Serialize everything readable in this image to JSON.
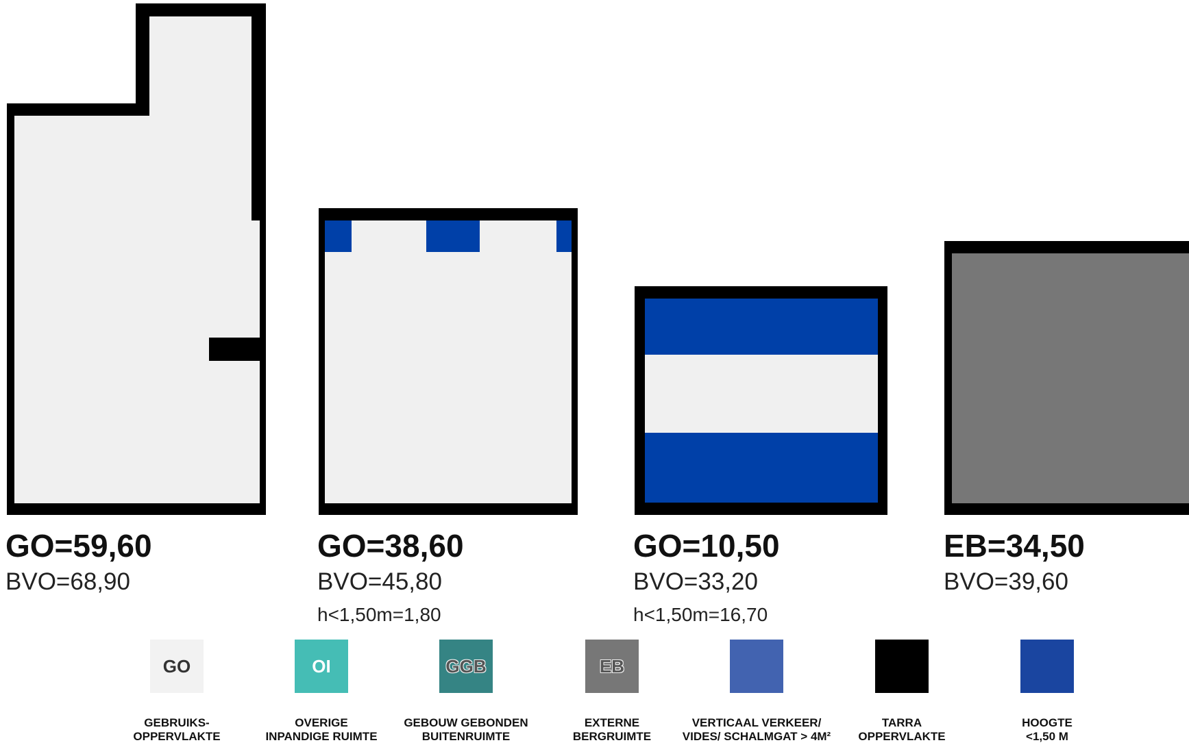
{
  "colors": {
    "wall": "#000000",
    "go": "#f0f0f0",
    "height_below_150": "#0040a8",
    "external_storage": "#777777"
  },
  "units": [
    {
      "primary": "GO=59,60",
      "secondary": "BVO=68,90",
      "tertiary": ""
    },
    {
      "primary": "GO=38,60",
      "secondary": "BVO=45,80",
      "tertiary": "h<1,50m=1,80"
    },
    {
      "primary": "GO=10,50",
      "secondary": "BVO=33,20",
      "tertiary": "h<1,50m=16,70"
    },
    {
      "primary": "EB=34,50",
      "secondary": "BVO=39,60",
      "tertiary": ""
    }
  ],
  "legend": [
    {
      "code": "GO",
      "label": "GEBRUIKS-\nOPPERVLAKTE",
      "color": "#f2f2f2",
      "code_color": "#333333"
    },
    {
      "code": "OI",
      "label": "OVERIGE\nINPANDIGE RUIMTE",
      "color": "#45bdb5",
      "code_color": "#ffffff"
    },
    {
      "code": "GGB",
      "label": "GEBOUW GEBONDEN\nBUITENRUIMTE",
      "color": "#358484",
      "code_color": "#555555"
    },
    {
      "code": "EB",
      "label": "EXTERNE\nBERGRUIMTE",
      "color": "#777777",
      "code_color": "#555555"
    },
    {
      "code": "",
      "label": "VERTICAAL VERKEER/\nVIDES/ SCHALMGAT > 4M²",
      "color": "#4263b0",
      "code_color": "#ffffff"
    },
    {
      "code": "",
      "label": "TARRA\nOPPERVLAKTE",
      "color": "#000000",
      "code_color": "#ffffff"
    },
    {
      "code": "",
      "label": "HOOGTE\n<1,50 M",
      "color": "#1a45a0",
      "code_color": "#ffffff"
    }
  ]
}
